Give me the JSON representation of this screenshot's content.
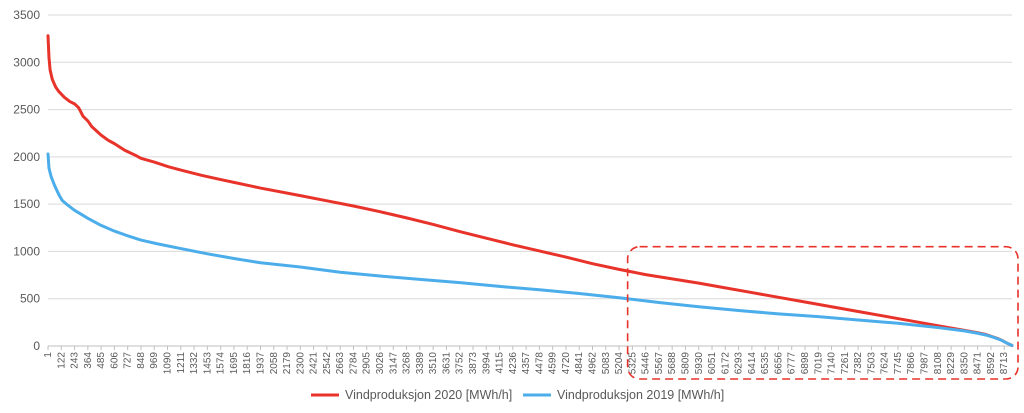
{
  "chart_data": {
    "type": "line",
    "title": "",
    "xlabel": "",
    "ylabel": "",
    "ylim": [
      0,
      3500
    ],
    "yticks": [
      0,
      500,
      1000,
      1500,
      2000,
      2500,
      3000,
      3500
    ],
    "xlim": [
      1,
      8784
    ],
    "xticks": [
      1,
      122,
      243,
      364,
      485,
      606,
      727,
      848,
      969,
      1090,
      1211,
      1332,
      1453,
      1574,
      1695,
      1816,
      1937,
      2058,
      2179,
      2300,
      2421,
      2542,
      2663,
      2784,
      2905,
      3026,
      3147,
      3268,
      3389,
      3510,
      3631,
      3752,
      3873,
      3994,
      4115,
      4236,
      4357,
      4478,
      4599,
      4720,
      4841,
      4962,
      5083,
      5204,
      5325,
      5446,
      5567,
      5688,
      5809,
      5930,
      6051,
      6172,
      6293,
      6414,
      6535,
      6656,
      6777,
      6898,
      7019,
      7140,
      7261,
      7382,
      7503,
      7624,
      7745,
      7866,
      7987,
      8108,
      8229,
      8350,
      8471,
      8592,
      8713
    ],
    "grid": "horizontal",
    "legend_position": "bottom",
    "series": [
      {
        "name": "Vindproduksjon 2020 [MWh/h]",
        "color": "#e8332b",
        "x": [
          1,
          10,
          20,
          40,
          70,
          100,
          150,
          200,
          243,
          280,
          320,
          364,
          400,
          485,
          550,
          606,
          700,
          800,
          848,
          969,
          1100,
          1211,
          1400,
          1574,
          1695,
          1937,
          2300,
          2542,
          2784,
          3026,
          3268,
          3510,
          3752,
          3994,
          4236,
          4478,
          4720,
          4962,
          5204,
          5446,
          5688,
          5930,
          6172,
          6414,
          6656,
          6898,
          7140,
          7382,
          7624,
          7866,
          8108,
          8350,
          8471,
          8550,
          8600,
          8650,
          8700,
          8740,
          8784
        ],
        "values": [
          3280,
          3050,
          2920,
          2820,
          2740,
          2690,
          2630,
          2585,
          2560,
          2520,
          2430,
          2380,
          2320,
          2230,
          2175,
          2140,
          2070,
          2015,
          1985,
          1945,
          1895,
          1860,
          1805,
          1760,
          1730,
          1670,
          1590,
          1535,
          1480,
          1420,
          1355,
          1285,
          1210,
          1140,
          1070,
          1005,
          940,
          870,
          810,
          755,
          710,
          665,
          615,
          565,
          515,
          465,
          415,
          365,
          315,
          265,
          215,
          165,
          140,
          120,
          100,
          80,
          55,
          30,
          5
        ]
      },
      {
        "name": "Vindproduksjon 2019 [MWh/h]",
        "color": "#4badea",
        "x": [
          1,
          10,
          30,
          60,
          100,
          130,
          180,
          243,
          300,
          364,
          485,
          606,
          727,
          848,
          1000,
          1211,
          1453,
          1695,
          1937,
          2300,
          2663,
          3026,
          3389,
          3752,
          4115,
          4478,
          4841,
          5204,
          5567,
          5930,
          6293,
          6656,
          7019,
          7382,
          7745,
          8108,
          8350,
          8471,
          8550,
          8620,
          8680,
          8730,
          8784
        ],
        "values": [
          2030,
          1880,
          1790,
          1700,
          1600,
          1540,
          1490,
          1435,
          1395,
          1350,
          1275,
          1215,
          1165,
          1120,
          1080,
          1030,
          975,
          925,
          880,
          835,
          780,
          740,
          705,
          670,
          630,
          595,
          555,
          510,
          460,
          415,
          375,
          340,
          310,
          275,
          240,
          195,
          160,
          135,
          115,
          90,
          65,
          35,
          5
        ]
      }
    ]
  },
  "highlight_box": {
    "color": "#e8332b",
    "style": "dashed",
    "x_range": [
      5446,
      8784
    ],
    "y_range": [
      0,
      1050
    ]
  }
}
